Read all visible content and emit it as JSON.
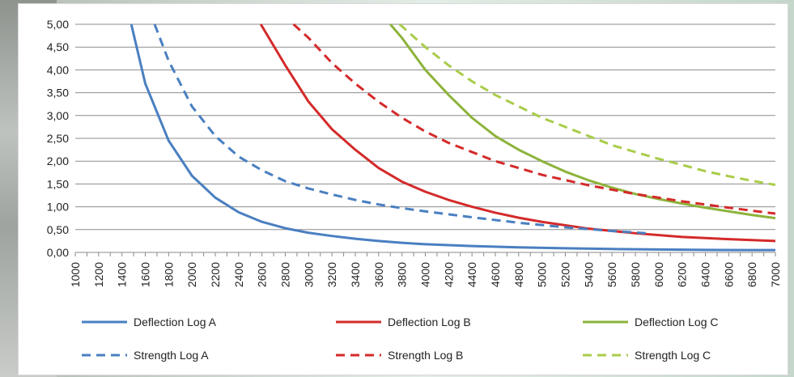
{
  "chart_data": {
    "type": "line",
    "title": "",
    "xlabel": "",
    "ylabel": "",
    "xlim": [
      1000,
      7000
    ],
    "ylim": [
      0,
      5
    ],
    "x_ticks": [
      "1000",
      "1200",
      "1400",
      "1600",
      "1800",
      "2000",
      "2200",
      "2400",
      "2600",
      "2800",
      "3000",
      "3200",
      "3400",
      "3600",
      "3800",
      "4000",
      "4200",
      "4400",
      "4600",
      "4800",
      "5000",
      "5200",
      "5400",
      "5600",
      "5800",
      "6000",
      "6200",
      "6400",
      "6600",
      "6800",
      "7000"
    ],
    "y_ticks": [
      "0,00",
      "0,50",
      "1,00",
      "1,50",
      "2,00",
      "2,50",
      "3,00",
      "3,50",
      "4,00",
      "4,50",
      "5,00"
    ],
    "grid": true,
    "legend_position": "bottom",
    "series": [
      {
        "name": "Deflection Log A",
        "color": "#4a7fc1",
        "dash": "solid",
        "x": [
          1480,
          1600,
          1800,
          2000,
          2200,
          2400,
          2600,
          2800,
          3000,
          3200,
          3400,
          3600,
          3800,
          4000,
          4400,
          4800,
          5200,
          5600,
          6000,
          6400,
          6800,
          7000
        ],
        "y": [
          5.0,
          3.7,
          2.45,
          1.68,
          1.2,
          0.88,
          0.67,
          0.53,
          0.43,
          0.36,
          0.3,
          0.25,
          0.21,
          0.18,
          0.14,
          0.11,
          0.09,
          0.075,
          0.065,
          0.055,
          0.05,
          0.05
        ]
      },
      {
        "name": "Deflection Log B",
        "color": "#d42a2a",
        "dash": "solid",
        "x": [
          2590,
          2800,
          3000,
          3200,
          3400,
          3600,
          3800,
          4000,
          4200,
          4400,
          4600,
          4800,
          5000,
          5400,
          5800,
          6200,
          6600,
          7000
        ],
        "y": [
          5.0,
          4.1,
          3.3,
          2.7,
          2.25,
          1.85,
          1.55,
          1.33,
          1.15,
          1.0,
          0.87,
          0.76,
          0.67,
          0.52,
          0.42,
          0.34,
          0.29,
          0.25
        ]
      },
      {
        "name": "Deflection Log C",
        "color": "#8db33b",
        "dash": "solid",
        "x": [
          3700,
          3800,
          4000,
          4200,
          4400,
          4600,
          4800,
          5000,
          5200,
          5400,
          5600,
          5800,
          6000,
          6200,
          6400,
          6600,
          6800,
          7000
        ],
        "y": [
          5.0,
          4.7,
          4.0,
          3.45,
          2.95,
          2.55,
          2.25,
          2.0,
          1.77,
          1.58,
          1.42,
          1.28,
          1.17,
          1.07,
          0.98,
          0.9,
          0.82,
          0.75
        ]
      },
      {
        "name": "Strength Log A",
        "color": "#4a7fc1",
        "dash": "dashed",
        "x": [
          1680,
          1800,
          2000,
          2200,
          2400,
          2600,
          2800,
          3000,
          3200,
          3400,
          3600,
          3800,
          4000,
          4400,
          4800,
          5200,
          5600,
          5900
        ],
        "y": [
          5.0,
          4.2,
          3.2,
          2.55,
          2.1,
          1.8,
          1.56,
          1.4,
          1.27,
          1.15,
          1.05,
          0.97,
          0.9,
          0.77,
          0.65,
          0.55,
          0.47,
          0.42
        ]
      },
      {
        "name": "Strength Log B",
        "color": "#d42a2a",
        "dash": "dashed",
        "x": [
          2870,
          3000,
          3200,
          3400,
          3600,
          3800,
          4000,
          4200,
          4400,
          4600,
          4800,
          5000,
          5400,
          5800,
          6200,
          6600,
          7000
        ],
        "y": [
          5.0,
          4.7,
          4.15,
          3.7,
          3.3,
          2.95,
          2.65,
          2.4,
          2.2,
          2.0,
          1.85,
          1.7,
          1.47,
          1.28,
          1.12,
          0.98,
          0.85
        ]
      },
      {
        "name": "Strength Log C",
        "color": "#a9cc4a",
        "dash": "dashed",
        "x": [
          3780,
          4000,
          4200,
          4400,
          4600,
          4800,
          5000,
          5200,
          5400,
          5600,
          5800,
          6000,
          6200,
          6400,
          6600,
          6800,
          7000
        ],
        "y": [
          5.0,
          4.5,
          4.1,
          3.75,
          3.45,
          3.2,
          2.95,
          2.75,
          2.55,
          2.35,
          2.2,
          2.05,
          1.92,
          1.78,
          1.67,
          1.57,
          1.48
        ]
      }
    ]
  }
}
